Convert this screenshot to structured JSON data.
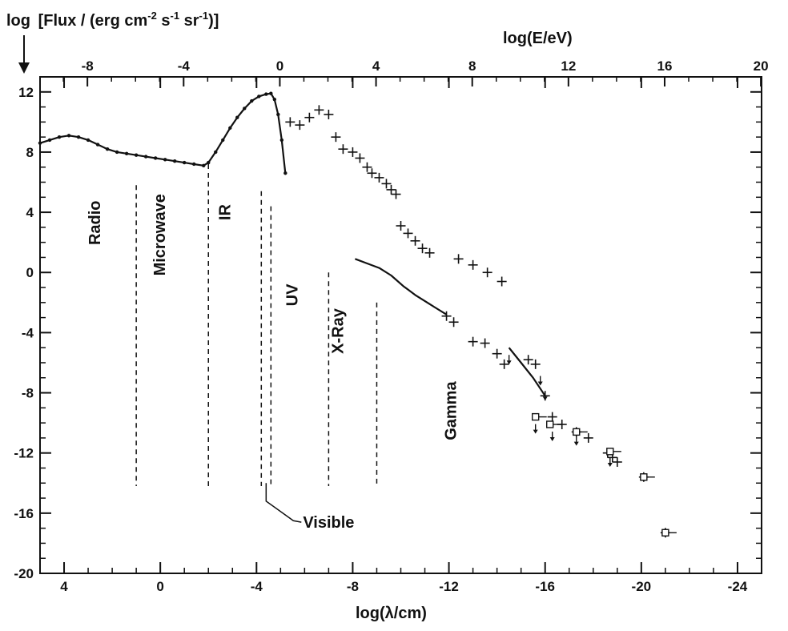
{
  "chart_data": {
    "type": "scatter",
    "ylabel": "log[Flux/(erg cm^-2 s^-1 sr^-1)]",
    "ylabel_parts": {
      "a": "log",
      "b": "Flux / (erg cm",
      "c": "-2",
      "d": " s",
      "e": "-1",
      "f": " sr",
      "g": "-1",
      "h": ")"
    },
    "xlabel_bottom": "log(λ/cm)",
    "xlabel_top": "log(E/eV)",
    "xlim_bottom": [
      5,
      -25
    ],
    "xlim_top": [
      -9.97,
      20.03
    ],
    "ylim": [
      -20,
      13
    ],
    "grid": false,
    "bottom_ticks": [
      "4",
      "0",
      "-4",
      "-8",
      "-12",
      "-16",
      "-20",
      "-24"
    ],
    "top_ticks": [
      "-8",
      "-4",
      "0",
      "4",
      "8",
      "12",
      "16",
      "20"
    ],
    "y_ticks": [
      "12",
      "8",
      "4",
      "0",
      "-4",
      "-8",
      "-12",
      "-16",
      "-20"
    ],
    "band_labels": [
      "Radio",
      "Microwave",
      "IR",
      "UV",
      "X-Ray",
      "Gamma"
    ],
    "visible_label": "Visible",
    "band_boundaries": [
      -2,
      1,
      -4.2,
      -4.6,
      -7,
      -9
    ],
    "series": [
      {
        "values": [
          [
            5.0,
            8.6
          ],
          [
            4.6,
            8.8
          ],
          [
            4.2,
            9.0
          ],
          [
            3.8,
            9.1
          ],
          [
            3.4,
            9.0
          ],
          [
            3.0,
            8.8
          ],
          [
            2.6,
            8.5
          ],
          [
            2.2,
            8.2
          ],
          [
            1.8,
            8.0
          ],
          [
            1.4,
            7.9
          ],
          [
            1.0,
            7.8
          ],
          [
            0.6,
            7.7
          ],
          [
            0.2,
            7.6
          ],
          [
            -0.2,
            7.5
          ],
          [
            -0.6,
            7.4
          ],
          [
            -1.0,
            7.3
          ],
          [
            -1.4,
            7.2
          ],
          [
            -1.8,
            7.1
          ],
          [
            -2.0,
            7.3
          ],
          [
            -2.3,
            8.0
          ],
          [
            -2.6,
            8.8
          ],
          [
            -2.9,
            9.6
          ],
          [
            -3.2,
            10.3
          ],
          [
            -3.5,
            10.9
          ],
          [
            -3.8,
            11.4
          ],
          [
            -4.1,
            11.7
          ],
          [
            -4.4,
            11.85
          ],
          [
            -4.6,
            11.9
          ],
          [
            -4.75,
            11.5
          ],
          [
            -4.9,
            10.5
          ],
          [
            -5.05,
            8.8
          ],
          [
            -5.2,
            6.6
          ]
        ]
      },
      {
        "values": [
          [
            -8.1,
            0.9
          ],
          [
            -8.6,
            0.6
          ],
          [
            -9.1,
            0.3
          ],
          [
            -9.6,
            -0.2
          ],
          [
            -10.1,
            -0.9
          ],
          [
            -10.6,
            -1.5
          ],
          [
            -11.1,
            -2.0
          ],
          [
            -11.4,
            -2.3
          ],
          [
            -11.9,
            -2.8
          ]
        ]
      },
      {
        "values": [
          [
            -14.5,
            -5.0
          ],
          [
            -15.0,
            -6.0
          ],
          [
            -15.5,
            -7.0
          ],
          [
            -16.0,
            -8.2
          ]
        ]
      },
      {
        "values": [
          [
            -5.4,
            10.0
          ],
          [
            -5.8,
            9.8
          ],
          [
            -6.2,
            10.3
          ],
          [
            -6.6,
            10.8
          ],
          [
            -7.0,
            10.5
          ],
          [
            -7.3,
            9.0
          ],
          [
            -7.6,
            8.2
          ],
          [
            -8.0,
            8.0
          ],
          [
            -8.3,
            7.6
          ],
          [
            -8.6,
            7.0
          ],
          [
            -8.8,
            6.6
          ],
          [
            -9.1,
            6.3
          ],
          [
            -9.4,
            5.9
          ],
          [
            -9.6,
            5.5
          ],
          [
            -9.8,
            5.2
          ],
          [
            -10.0,
            3.1
          ],
          [
            -10.3,
            2.6
          ],
          [
            -10.6,
            2.1
          ],
          [
            -10.9,
            1.6
          ],
          [
            -11.2,
            1.3
          ],
          [
            -12.4,
            0.9
          ],
          [
            -13.0,
            0.5
          ],
          [
            -13.6,
            0.0
          ],
          [
            -14.2,
            -0.6
          ],
          [
            -11.9,
            -2.9
          ],
          [
            -12.2,
            -3.3
          ],
          [
            -13.0,
            -4.6
          ],
          [
            -13.5,
            -4.7
          ],
          [
            -14.0,
            -5.4
          ],
          [
            -14.3,
            -6.1
          ],
          [
            -15.3,
            -5.8
          ],
          [
            -15.6,
            -6.1
          ],
          [
            -16.0,
            -8.2
          ],
          [
            -16.3,
            -9.6
          ],
          [
            -16.7,
            -10.1
          ],
          [
            -17.3,
            -10.6
          ],
          [
            -17.8,
            -11.0
          ],
          [
            -18.6,
            -12.0
          ],
          [
            -18.8,
            -12.3
          ],
          [
            -19.0,
            -12.6
          ],
          [
            -20.1,
            -13.6
          ],
          [
            -21.0,
            -17.3
          ]
        ]
      }
    ]
  }
}
